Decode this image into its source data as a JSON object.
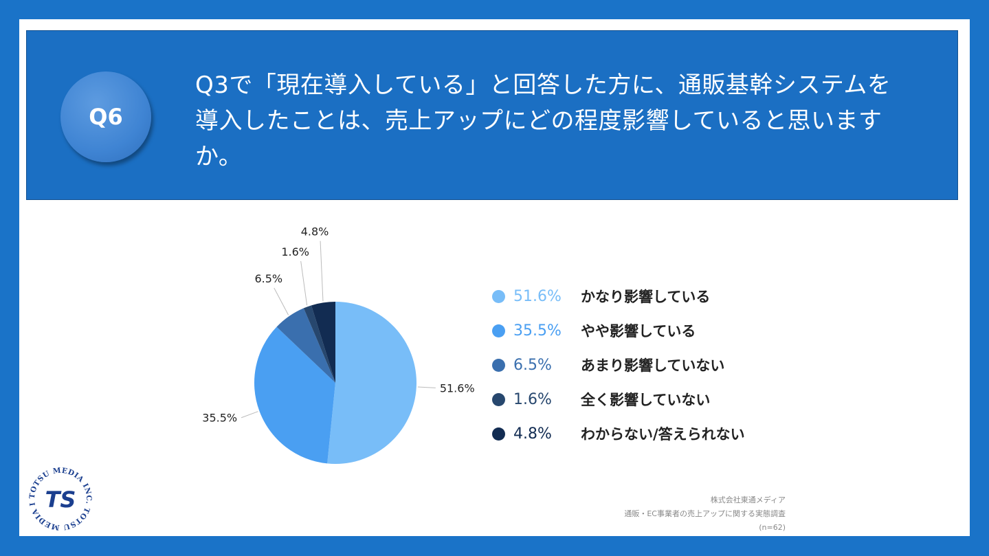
{
  "badge": "Q6",
  "question": "Q3で「現在導入している」と回答した方に、通販基幹システムを導入したことは、売上アップにどの程度影響していると思いますか。",
  "chart_data": {
    "type": "pie",
    "categories": [
      "かなり影響している",
      "やや影響している",
      "あまり影響していない",
      "全く影響していない",
      "わからない/答えられない"
    ],
    "values": [
      51.6,
      35.5,
      6.5,
      1.6,
      4.8
    ],
    "data_labels": [
      "51.6%",
      "35.5%",
      "6.5%",
      "1.6%",
      "4.8%"
    ],
    "colors": [
      "#78bdf8",
      "#4a9ff2",
      "#3a6fae",
      "#27476e",
      "#122c52"
    ],
    "legend_placement": "right"
  },
  "source": {
    "company": "株式会社東通メディア",
    "survey": "通販・EC事業者の売上アップに関する実態調査",
    "sample": "(n=62)"
  },
  "logo": {
    "ring_text": "TOTSU MEDIA INC. TOTSU MEDIA INC.",
    "mark": "TS"
  }
}
